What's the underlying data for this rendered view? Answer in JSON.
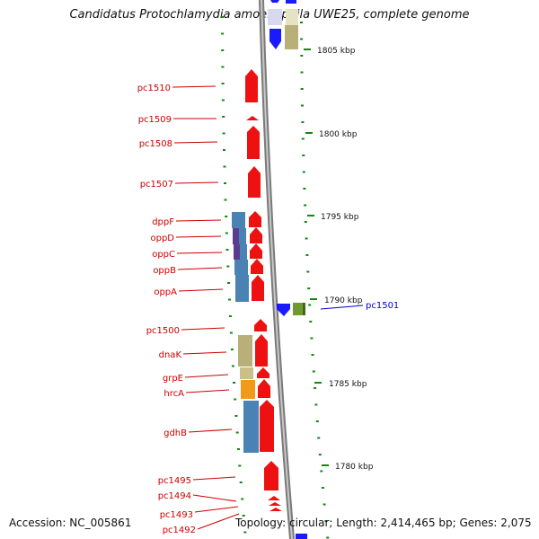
{
  "title": "Candidatus Protochlamydia amoebophila UWE25, complete genome",
  "accession": "Accession: NC_005861",
  "topology": "Topology: circular; Length: 2,414,465 bp; Genes: 2,075",
  "colors": {
    "label_red": "#cc0000",
    "label_blue": "#0000cc",
    "gene_red": "#ee1111",
    "gene_blue": "#1a1aff",
    "tick_green": "#118811",
    "backbone": "#888888",
    "cds_steel": "#4a82b4",
    "cds_khaki": "#b8b078",
    "cds_olive": "#6e9a2e",
    "cds_orange": "#f09a18",
    "cds_purple": "#5a3c8e"
  },
  "scale_labels": [
    "1805 kbp",
    "1800 kbp",
    "1795 kbp",
    "1790 kbp",
    "1785 kbp",
    "1780 kbp"
  ],
  "gene_labels": [
    {
      "text": "pc1510",
      "color": "red"
    },
    {
      "text": "pc1509",
      "color": "red"
    },
    {
      "text": "pc1508",
      "color": "red"
    },
    {
      "text": "pc1507",
      "color": "red"
    },
    {
      "text": "dppF",
      "color": "red"
    },
    {
      "text": "oppD",
      "color": "red"
    },
    {
      "text": "oppC",
      "color": "red"
    },
    {
      "text": "oppB",
      "color": "red"
    },
    {
      "text": "oppA",
      "color": "red"
    },
    {
      "text": "pc1500",
      "color": "red"
    },
    {
      "text": "dnaK",
      "color": "red"
    },
    {
      "text": "grpE",
      "color": "red"
    },
    {
      "text": "hrcA",
      "color": "red"
    },
    {
      "text": "gdhB",
      "color": "red"
    },
    {
      "text": "pc1495",
      "color": "red"
    },
    {
      "text": "pc1494",
      "color": "red"
    },
    {
      "text": "pc1493",
      "color": "red"
    },
    {
      "text": "pc1492",
      "color": "red"
    },
    {
      "text": "pc1501",
      "color": "blue"
    }
  ]
}
